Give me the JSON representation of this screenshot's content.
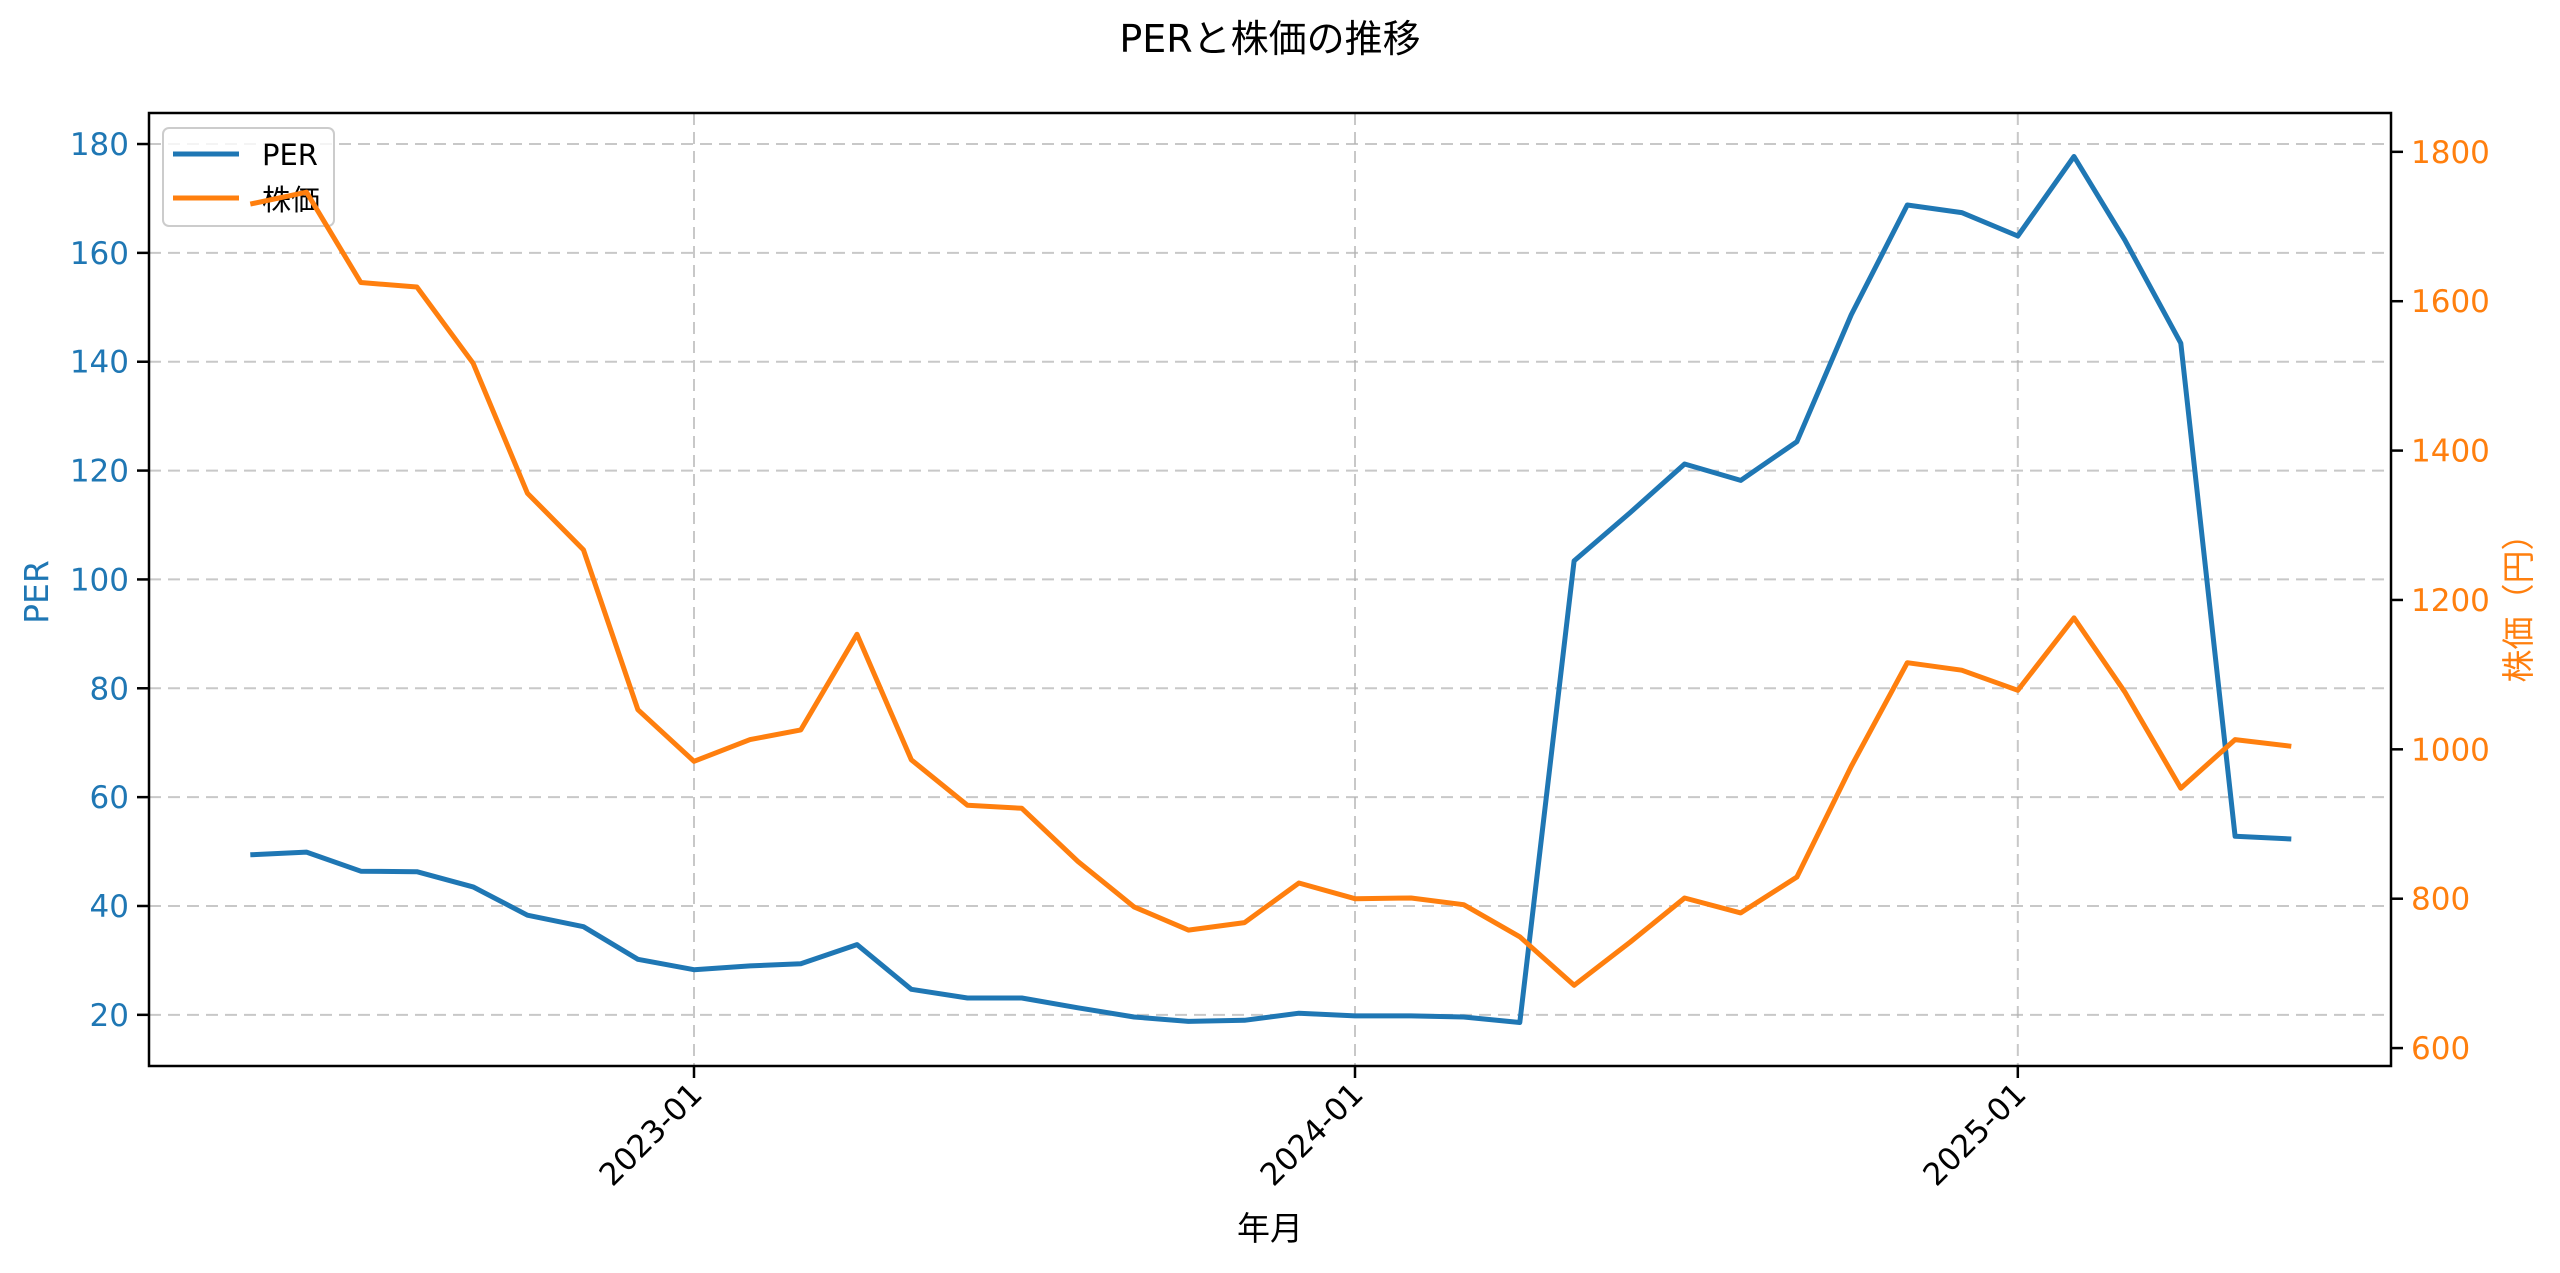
{
  "chart_data": {
    "type": "line",
    "title": "PERと株価の推移",
    "xlabel": "年月",
    "ylabel_left": "PER",
    "ylabel_right": "株価（円）",
    "x_ticks": [
      "2023-01",
      "2024-01",
      "2025-01"
    ],
    "x_tick_dates": [
      "2023-01-01",
      "2024-01-01",
      "2025-01-01"
    ],
    "x_tick_rotation": 45,
    "xlim": [
      "2022-03-06",
      "2025-07-26"
    ],
    "ylim_left": [
      10.6,
      185.7
    ],
    "yticks_left": [
      20,
      40,
      60,
      80,
      100,
      120,
      140,
      160,
      180
    ],
    "ylim_right": [
      576,
      1852
    ],
    "yticks_right": [
      600,
      800,
      1000,
      1200,
      1400,
      1600,
      1800
    ],
    "grid": true,
    "grid_style": "dashed",
    "legend_position": "upper left",
    "x": [
      "2022-05",
      "2022-06",
      "2022-07",
      "2022-08",
      "2022-09",
      "2022-10",
      "2022-11",
      "2022-12",
      "2023-01",
      "2023-02",
      "2023-03",
      "2023-04",
      "2023-05",
      "2023-06",
      "2023-07",
      "2023-08",
      "2023-09",
      "2023-10",
      "2023-11",
      "2023-12",
      "2024-01",
      "2024-02",
      "2024-03",
      "2024-04",
      "2024-05",
      "2024-06",
      "2024-07",
      "2024-08",
      "2024-09",
      "2024-10",
      "2024-11",
      "2024-12",
      "2025-01",
      "2025-02",
      "2025-03",
      "2025-04",
      "2025-05",
      "2025-06"
    ],
    "series": [
      {
        "name": "PER",
        "axis": "left",
        "color": "#1f77b4",
        "values": [
          49.4,
          49.9,
          46.4,
          46.3,
          43.5,
          38.3,
          36.2,
          30.2,
          28.3,
          29.0,
          29.4,
          32.9,
          24.7,
          23.1,
          23.1,
          21.3,
          19.6,
          18.8,
          19.0,
          20.3,
          19.8,
          19.8,
          19.6,
          18.6,
          103.4,
          112.3,
          121.2,
          118.2,
          125.3,
          148.6,
          168.8,
          167.4,
          163.1,
          177.7,
          162.4,
          143.4,
          52.8,
          52.3
        ]
      },
      {
        "name": "株価",
        "axis": "right",
        "color": "#ff7f0e",
        "values": [
          1730,
          1746,
          1625,
          1619,
          1517,
          1343,
          1267,
          1053,
          984,
          1013,
          1026,
          1154,
          986,
          925,
          921,
          850,
          789,
          758,
          768,
          821,
          800,
          801,
          792,
          749,
          684,
          742,
          801,
          781,
          829,
          977,
          1116,
          1106,
          1079,
          1176,
          1077,
          948,
          1013,
          1004
        ]
      }
    ]
  },
  "legend": {
    "items": [
      {
        "label": "PER",
        "color": "#1f77b4"
      },
      {
        "label": "株価",
        "color": "#ff7f0e"
      }
    ]
  }
}
